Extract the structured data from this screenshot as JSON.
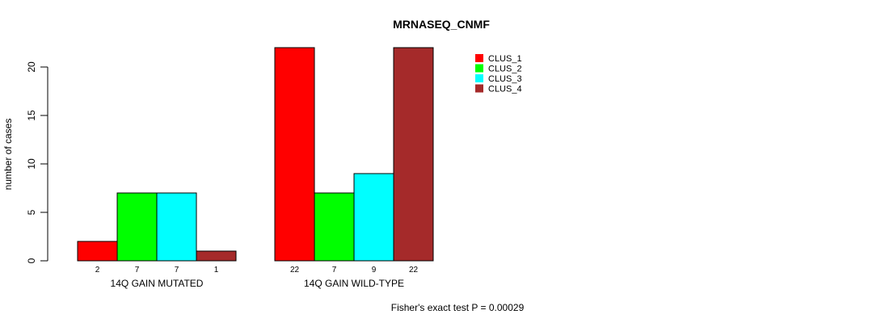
{
  "chart_data": {
    "type": "bar",
    "title": "MRNASEQ_CNMF",
    "xlabel": "",
    "ylabel": "number of cases",
    "ylim": [
      0,
      22
    ],
    "yticks": [
      0,
      5,
      10,
      15,
      20
    ],
    "grid": false,
    "legend_position": "top-right",
    "categories": [
      "14Q GAIN MUTATED",
      "14Q GAIN WILD-TYPE"
    ],
    "series": [
      {
        "name": "CLUS_1",
        "color": "#ff0000",
        "values": [
          2,
          22
        ]
      },
      {
        "name": "CLUS_2",
        "color": "#00ff00",
        "values": [
          7,
          7
        ]
      },
      {
        "name": "CLUS_3",
        "color": "#00ffff",
        "values": [
          7,
          9
        ]
      },
      {
        "name": "CLUS_4",
        "color": "#a52a2a",
        "values": [
          1,
          22
        ]
      }
    ],
    "footnote": "Fisher's exact test P = 0.00029"
  }
}
